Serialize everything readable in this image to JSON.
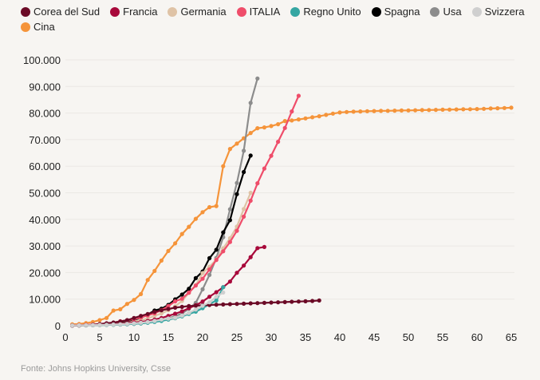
{
  "source_text": "Fonte: Johns Hopkins University, Csse",
  "chart_data": {
    "type": "line",
    "title": "",
    "xlabel": "",
    "ylabel": "",
    "xlim": [
      0,
      65
    ],
    "ylim": [
      0,
      100000
    ],
    "x_ticks": [
      0,
      5,
      10,
      15,
      20,
      25,
      30,
      35,
      40,
      45,
      50,
      55,
      60,
      65
    ],
    "y_ticks": [
      0,
      10000,
      20000,
      30000,
      40000,
      50000,
      60000,
      70000,
      80000,
      90000,
      100000
    ],
    "y_tick_labels": [
      "0",
      "10.000",
      "20.000",
      "30.000",
      "40.000",
      "50.000",
      "60.000",
      "70.000",
      "80.000",
      "90.000",
      "100.000"
    ],
    "grid": true,
    "legend_position": "top-left",
    "series": [
      {
        "name": "Corea del Sud",
        "color": "#6b0a26",
        "start_day": 1,
        "values": [
          30,
          100,
          200,
          350,
          600,
          900,
          1200,
          1600,
          2100,
          2900,
          3700,
          4400,
          5200,
          5800,
          6300,
          6800,
          7100,
          7400,
          7500,
          7700,
          7800,
          7900,
          8000,
          8100,
          8200,
          8300,
          8400,
          8500,
          8600,
          8700,
          8800,
          8900,
          9000,
          9100,
          9200,
          9300,
          9500
        ]
      },
      {
        "name": "Francia",
        "color": "#a8093b",
        "start_day": 1,
        "values": [
          100,
          150,
          200,
          250,
          300,
          400,
          600,
          700,
          1000,
          1200,
          1400,
          1800,
          2300,
          2900,
          3700,
          4500,
          5400,
          6600,
          7700,
          9100,
          10900,
          12600,
          14500,
          16600,
          19900,
          22600,
          25800,
          29200,
          29600
        ]
      },
      {
        "name": "Germania",
        "color": "#dfc3a6",
        "start_day": 1,
        "values": [
          100,
          130,
          160,
          200,
          250,
          350,
          500,
          800,
          1100,
          1600,
          2100,
          2700,
          3700,
          4600,
          5800,
          7300,
          9300,
          12300,
          15300,
          19800,
          22200,
          24900,
          29100,
          32900,
          37300,
          43900,
          50000
        ]
      },
      {
        "name": "ITALIA",
        "color": "#ef4d6a",
        "start_day": 1,
        "values": [
          150,
          230,
          320,
          450,
          650,
          890,
          1130,
          1700,
          2040,
          2500,
          3090,
          3860,
          4640,
          5880,
          7380,
          9170,
          10150,
          12460,
          15110,
          17660,
          21150,
          24750,
          27980,
          31500,
          35710,
          41030,
          47020,
          53580,
          59140,
          63930,
          69180,
          74390,
          80590,
          86500
        ]
      },
      {
        "name": "Regno Unito",
        "color": "#35a6a2",
        "start_day": 1,
        "values": [
          100,
          120,
          150,
          200,
          250,
          300,
          350,
          450,
          550,
          700,
          850,
          1100,
          1400,
          1800,
          2300,
          2800,
          3500,
          4400,
          5300,
          6600,
          8100,
          9500,
          14500
        ]
      },
      {
        "name": "Spagna",
        "color": "#000000",
        "start_day": 1,
        "values": [
          120,
          150,
          200,
          250,
          350,
          500,
          650,
          1000,
          1500,
          2200,
          3000,
          4200,
          5700,
          6400,
          7800,
          9900,
          11700,
          13900,
          17900,
          20400,
          25400,
          28600,
          35100,
          39700,
          49500,
          57800,
          64000
        ]
      },
      {
        "name": "Usa",
        "color": "#8c8c8c",
        "start_day": 1,
        "values": [
          100,
          120,
          150,
          200,
          250,
          300,
          350,
          450,
          550,
          700,
          900,
          1200,
          1600,
          2100,
          2800,
          3600,
          4600,
          6400,
          8600,
          13700,
          19100,
          25500,
          33300,
          43800,
          53700,
          65800,
          83800,
          93000
        ]
      },
      {
        "name": "Svizzera",
        "color": "#cfcfcf",
        "start_day": 1,
        "values": [
          100,
          150,
          200,
          250,
          300,
          350,
          450,
          550,
          700,
          900,
          1100,
          1400,
          1800,
          2300,
          2700,
          3000,
          3800,
          4800,
          6100,
          7500,
          8800,
          10900,
          12500
        ]
      },
      {
        "name": "Cina",
        "color": "#f5943a",
        "start_day": 1,
        "values": [
          550,
          650,
          1000,
          1400,
          2100,
          2900,
          5700,
          6200,
          8200,
          9700,
          11900,
          17200,
          20600,
          24500,
          28100,
          31000,
          34500,
          37200,
          40200,
          42700,
          44600,
          45000,
          60000,
          66500,
          68500,
          70500,
          72500,
          74300,
          74600,
          75100,
          75800,
          77000,
          77200,
          77600,
          78000,
          78400,
          78800,
          79300,
          79800,
          80200,
          80400,
          80500,
          80600,
          80700,
          80750,
          80800,
          80850,
          80900,
          80950,
          81000,
          81050,
          81100,
          81150,
          81200,
          81250,
          81300,
          81350,
          81400,
          81450,
          81500,
          81600,
          81700,
          81800,
          81900,
          82000
        ]
      }
    ]
  }
}
